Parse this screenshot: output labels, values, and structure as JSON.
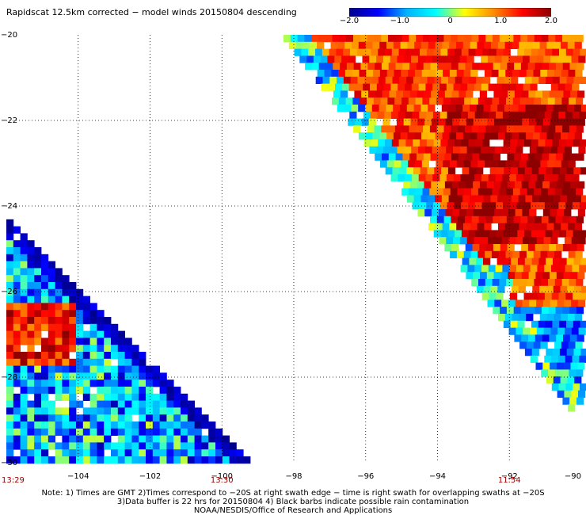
{
  "title": "Rapidscat 12.5km corrected − model winds 20150804 descending",
  "colorbar": {
    "ticks": [
      {
        "value": -2.0,
        "label": "−2.0"
      },
      {
        "value": -1.0,
        "label": "−1.0"
      },
      {
        "value": 0,
        "label": "0"
      },
      {
        "value": 1.0,
        "label": "1.0"
      },
      {
        "value": 2.0,
        "label": "2.0"
      }
    ],
    "range": [
      -2.0,
      2.0
    ],
    "stops": [
      "#00008c",
      "#0000ff",
      "#00b4ff",
      "#00ffff",
      "#ffff00",
      "#ff8c00",
      "#ff0000",
      "#8c0000"
    ]
  },
  "map": {
    "lat_range": [
      -20,
      -30
    ],
    "lon_range": [
      -106,
      -90
    ],
    "latitudes": [
      {
        "value": -20,
        "label": "−20"
      },
      {
        "value": -22,
        "label": "−22"
      },
      {
        "value": -24,
        "label": "−24"
      },
      {
        "value": -26,
        "label": "−26"
      },
      {
        "value": -28,
        "label": "−28"
      },
      {
        "value": -30,
        "label": "−30"
      }
    ],
    "longitudes": [
      {
        "value": -104,
        "label": "−104"
      },
      {
        "value": -102,
        "label": "−102"
      },
      {
        "value": -100,
        "label": "−100"
      },
      {
        "value": -98,
        "label": "−98"
      },
      {
        "value": -96,
        "label": "−96"
      },
      {
        "value": -94,
        "label": "−94"
      },
      {
        "value": -92,
        "label": "−92"
      },
      {
        "value": -90,
        "label": "−90"
      }
    ],
    "swath_times": [
      {
        "lon": -106,
        "label": "13:29"
      },
      {
        "lon": -100,
        "label": "13:30"
      },
      {
        "lon": -92,
        "label": "11:54"
      }
    ]
  },
  "notes": [
    "Note: 1) Times are GMT 2)Times correspond to −20S at right swath edge − time is right swath for overlapping swaths at −20S",
    "3)Data buffer is 22 hrs for 20150804 4) Black barbs indicate possible rain contamination",
    "NOAA/NESDIS/Office of Research and Applications"
  ]
}
